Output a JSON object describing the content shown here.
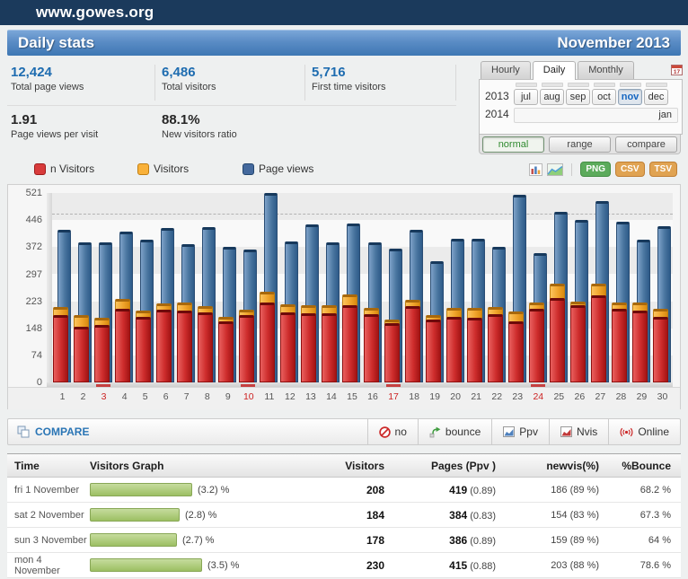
{
  "topbar": {
    "site_label": "www.gowes.org"
  },
  "header": {
    "title": "Daily stats",
    "period": "November 2013"
  },
  "summary_stats": {
    "row1": [
      {
        "value": "12,424",
        "label": "Total page views"
      },
      {
        "value": "6,486",
        "label": "Total visitors"
      },
      {
        "value": "5,716",
        "label": "First time visitors"
      }
    ],
    "row2": [
      {
        "value": "1.91",
        "label": "Page views per visit"
      },
      {
        "value": "88.1%",
        "label": "New visitors ratio"
      }
    ]
  },
  "period_panel": {
    "tabs": [
      {
        "label": "Hourly",
        "active": false
      },
      {
        "label": "Daily",
        "active": true
      },
      {
        "label": "Monthly",
        "active": false
      }
    ],
    "calendar_icon_day": "17",
    "year_rows": [
      {
        "year": "2013",
        "months": [
          {
            "label": "jul",
            "selected": false
          },
          {
            "label": "aug",
            "selected": false
          },
          {
            "label": "sep",
            "selected": false
          },
          {
            "label": "oct",
            "selected": false
          },
          {
            "label": "nov",
            "selected": true
          },
          {
            "label": "dec",
            "selected": false
          }
        ]
      },
      {
        "year": "2014",
        "months": [
          {
            "label": "jan",
            "selected": false,
            "wide": true
          }
        ]
      }
    ],
    "mode_buttons": [
      {
        "label": "normal",
        "active": true
      },
      {
        "label": "range",
        "active": false
      },
      {
        "label": "compare",
        "active": false
      }
    ]
  },
  "legend": {
    "items": [
      {
        "label": "n Visitors",
        "color": "#d83b3b",
        "border": "#9e1c1c"
      },
      {
        "label": "Visitors",
        "color": "#f9b13a",
        "border": "#c07f14"
      },
      {
        "label": "Page views",
        "color": "#44699d",
        "border": "#24476f"
      }
    ]
  },
  "export_buttons": [
    {
      "label": "PNG",
      "color": "#5cab5c",
      "border": "#458f45"
    },
    {
      "label": "CSV",
      "color": "#e0a352",
      "border": "#c08036"
    },
    {
      "label": "TSV",
      "color": "#e0a352",
      "border": "#c08036"
    }
  ],
  "chart_data": {
    "type": "bar",
    "title": "",
    "categories": [
      1,
      2,
      3,
      4,
      5,
      6,
      7,
      8,
      9,
      10,
      11,
      12,
      13,
      14,
      15,
      16,
      17,
      18,
      19,
      20,
      21,
      22,
      23,
      24,
      25,
      26,
      27,
      28,
      29,
      30
    ],
    "series": [
      {
        "name": "Page views",
        "color": "#3f6b9c",
        "values": [
          419,
          384,
          386,
          415,
          393,
          424,
          380,
          428,
          372,
          365,
          521,
          388,
          435,
          385,
          437,
          385,
          368,
          419,
          334,
          396,
          395,
          374,
          516,
          355,
          468,
          446,
          500,
          442,
          393,
          430
        ]
      },
      {
        "name": "Visitors",
        "color": "#f5a62c",
        "values": [
          208,
          184,
          178,
          230,
          197,
          217,
          219,
          211,
          180,
          199,
          250,
          216,
          212,
          212,
          241,
          204,
          172,
          228,
          184,
          205,
          205,
          208,
          196,
          221,
          271,
          223,
          272,
          221,
          221,
          203
        ]
      },
      {
        "name": "n Visitors",
        "color": "#cc2626",
        "values": [
          186,
          154,
          159,
          203,
          180,
          201,
          197,
          192,
          168,
          184,
          221,
          192,
          190,
          190,
          213,
          188,
          162,
          209,
          172,
          180,
          179,
          187,
          168,
          202,
          231,
          213,
          239,
          202,
          198,
          180
        ]
      }
    ],
    "ylim": [
      0,
      521
    ],
    "yticks": [
      0,
      74,
      148,
      223,
      297,
      372,
      446,
      521
    ],
    "sunday_categories": [
      3,
      10,
      17,
      24
    ],
    "dashed_line_value": 465,
    "legend_position": "top",
    "grid": "horizontal-bands"
  },
  "compare_bar": {
    "title": "COMPARE",
    "options": [
      {
        "label": "no",
        "icon": "block-icon"
      },
      {
        "label": "bounce",
        "icon": "bounce-arrow-icon"
      },
      {
        "label": "Ppv",
        "icon": "pageviews-chart-icon"
      },
      {
        "label": "Nvis",
        "icon": "newvisitors-chart-icon"
      },
      {
        "label": "Online",
        "icon": "online-signal-icon"
      }
    ]
  },
  "table": {
    "columns": [
      "Time",
      "Visitors Graph",
      "Visitors",
      "Pages (Ppv )",
      "newvis(%)",
      "%Bounce"
    ],
    "rows": [
      {
        "time": "fri 1 November",
        "graph_value": 3.2,
        "graph_label": "(3.2) %",
        "visitors": "208",
        "pages": "419",
        "ppv": "(0.89)",
        "newvis": "186 (89 %)",
        "bounce": "68.2 %"
      },
      {
        "time": "sat 2 November",
        "graph_value": 2.8,
        "graph_label": "(2.8) %",
        "visitors": "184",
        "pages": "384",
        "ppv": "(0.83)",
        "newvis": "154 (83 %)",
        "bounce": "67.3 %"
      },
      {
        "time": "sun 3 November",
        "graph_value": 2.7,
        "graph_label": "(2.7) %",
        "visitors": "178",
        "pages": "386",
        "ppv": "(0.89)",
        "newvis": "159 (89 %)",
        "bounce": "64 %"
      },
      {
        "time": "mon 4 November",
        "graph_value": 3.5,
        "graph_label": "(3.5) %",
        "visitors": "230",
        "pages": "415",
        "ppv": "(0.88)",
        "newvis": "203 (88 %)",
        "bounce": "78.6 %"
      }
    ]
  }
}
